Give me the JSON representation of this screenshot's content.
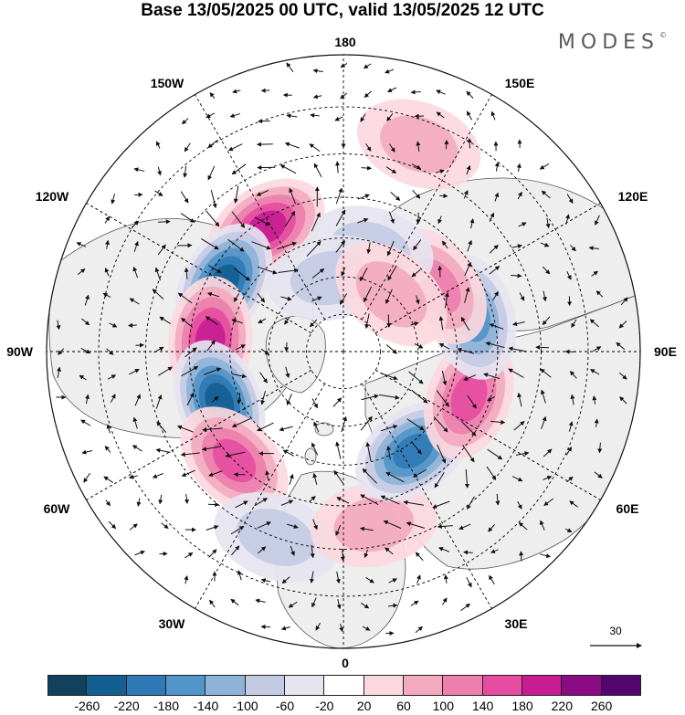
{
  "title": "Base 13/05/2025 00 UTC, valid 13/05/2025 12 UTC",
  "brand": {
    "name": "MODES",
    "mark": "©"
  },
  "map": {
    "projection": "north polar stereographic",
    "longitude_labels": {
      "top": "180",
      "bottom": "0",
      "left": "90W",
      "right": "90E",
      "upper_left_1": "150W",
      "upper_left_2": "120W",
      "upper_right_1": "150E",
      "upper_right_2": "120E",
      "lower_left_1": "60W",
      "lower_left_2": "30W",
      "lower_right_1": "60E",
      "lower_right_2": "30E"
    },
    "reference_vector": {
      "label": "30"
    },
    "colors": {
      "land": "#eeeeee",
      "coast": "#555555",
      "grid": "#000000"
    }
  },
  "colorbar": {
    "labels": [
      "-260",
      "-220",
      "-180",
      "-140",
      "-100",
      "-60",
      "-20",
      "20",
      "60",
      "100",
      "140",
      "180",
      "220",
      "260"
    ],
    "colors": [
      "#12405f",
      "#135f92",
      "#2f7ab6",
      "#5295c8",
      "#8eb3d9",
      "#c3cbe3",
      "#e6e4f0",
      "#ffffff",
      "#fcd9df",
      "#f3aac0",
      "#ec7fae",
      "#e64da1",
      "#c81d91",
      "#8a0b84",
      "#52076f"
    ]
  },
  "anomalies": [
    {
      "lon": -148,
      "lat": 52,
      "value": 190
    },
    {
      "lon": -120,
      "lat": 54,
      "value": -200
    },
    {
      "lon": -95,
      "lat": 55,
      "value": 160
    },
    {
      "lon": -68,
      "lat": 55,
      "value": -210
    },
    {
      "lon": -45,
      "lat": 50,
      "value": 120
    },
    {
      "lon": -20,
      "lat": 40,
      "value": -60
    },
    {
      "lon": 10,
      "lat": 45,
      "value": 60
    },
    {
      "lon": 35,
      "lat": 58,
      "value": -190
    },
    {
      "lon": 70,
      "lat": 55,
      "value": 150
    },
    {
      "lon": 105,
      "lat": 55,
      "value": -120
    },
    {
      "lon": 125,
      "lat": 60,
      "value": 90
    },
    {
      "lon": 165,
      "lat": 62,
      "value": -70
    },
    {
      "lon": 160,
      "lat": 35,
      "value": 40
    },
    {
      "lon": -170,
      "lat": 70,
      "value": -60
    },
    {
      "lon": 140,
      "lat": 70,
      "value": 60
    }
  ]
}
